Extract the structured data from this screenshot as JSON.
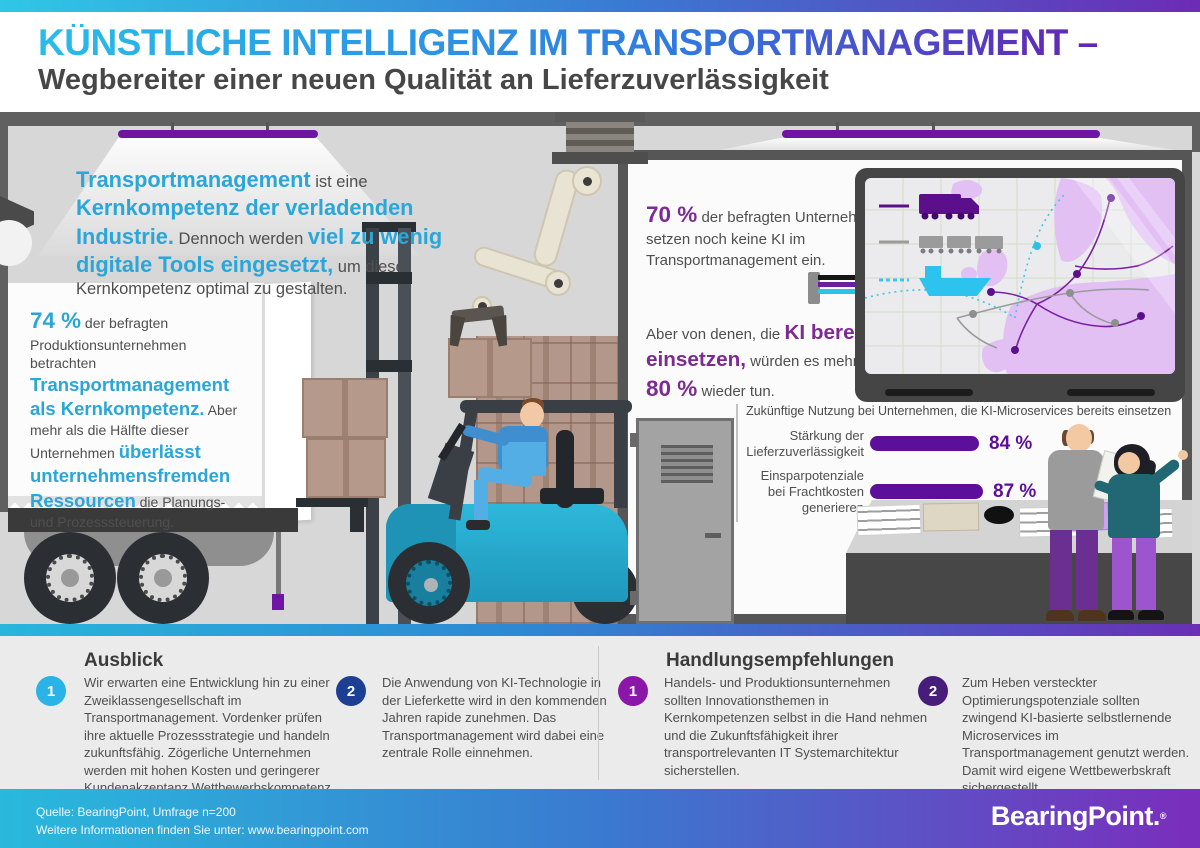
{
  "colors": {
    "accent_cyan": "#2aa6d8",
    "accent_purple": "#7d2a93",
    "bar_purple": "#5c0f9b",
    "circle_outlook_1": "#29b3e6",
    "circle_outlook_2": "#1c3f94",
    "circle_reco_1": "#8b17a8",
    "circle_reco_2": "#471d7a"
  },
  "header": {
    "title": "KÜNSTLICHE INTELLIGENZ IM TRANSPORTMANAGEMENT –",
    "subtitle": "Wegbereiter einer neuen Qualität an Lieferzuverlässigkeit"
  },
  "scene": {
    "intro": [
      {
        "t": "Transportmanagement",
        "s": "c"
      },
      {
        "t": " ist eine ",
        "s": ""
      },
      {
        "t": "Kernkompetenz der verladenden Industrie.",
        "s": "c"
      },
      {
        "t": " Dennoch werden ",
        "s": ""
      },
      {
        "t": "viel zu wenig digitale Tools eingesetzt,",
        "s": "c"
      },
      {
        "t": " um diese Kernkompetenz optimal zu gestalten.",
        "s": ""
      }
    ],
    "stat74": [
      {
        "t": "74 %",
        "s": "cb"
      },
      {
        "t": " der befragten Produktionsunternehmen betrachten ",
        "s": ""
      },
      {
        "t": "Transportmanagement als Kernkompetenz.",
        "s": "c"
      },
      {
        "t": " Aber mehr als die Hälfte dieser Unternehmen ",
        "s": ""
      },
      {
        "t": "überlässt unternehmensfremden Ressourcen",
        "s": "c"
      },
      {
        "t": " die Planungs- und Prozesssteuerung.",
        "s": ""
      }
    ],
    "stat70": [
      {
        "t": "70 %",
        "s": "pb"
      },
      {
        "t": " der befragten Unternehmen setzen noch keine KI im Transportmanagement ein.",
        "s": ""
      }
    ],
    "stat80": [
      {
        "t": "Aber von denen, die ",
        "s": ""
      },
      {
        "t": "KI bereits einsetzen,",
        "s": "p"
      },
      {
        "t": " würden es mehr als ",
        "s": ""
      },
      {
        "t": "80 %",
        "s": "pb"
      },
      {
        "t": " wieder tun.",
        "s": ""
      }
    ],
    "map": {
      "legend": [
        {
          "name": "truck-route",
          "color": "#5c0f8b",
          "style": "solid"
        },
        {
          "name": "rail-route",
          "color": "#9b9b9b",
          "style": "solid"
        },
        {
          "name": "ship-route",
          "color": "#2cc4ee",
          "style": "dotted"
        }
      ]
    }
  },
  "chart_data": {
    "type": "bar",
    "orientation": "horizontal",
    "title": "Zukünftige Nutzung bei Unternehmen, die KI-Microservices bereits einsetzen",
    "categories": [
      "Stärkung der Lieferzuverlässigkeit",
      "Einsparpotenziale bei Frachtkosten generieren"
    ],
    "values": [
      84,
      87
    ],
    "value_labels": [
      "84 %",
      "87 %"
    ],
    "unit": "%",
    "xlim": [
      0,
      100
    ],
    "bar_color": "#5c0f9b",
    "legend_position": "none",
    "grid": false
  },
  "outlook": {
    "heading": "Ausblick",
    "items": [
      {
        "num": "1",
        "text": "Wir erwarten eine Entwicklung hin zu einer Zweiklassengesellschaft im Transportmanagement. Vordenker prüfen ihre aktuelle Prozessstrategie und handeln zukunftsfähig. Zögerliche Unternehmen werden mit hohen Kosten und geringerer Kundenakzeptanz Wettbewerbskompetenz verlieren."
      },
      {
        "num": "2",
        "text": "Die Anwendung von KI-Technologie in der Lieferkette wird in den kommenden Jahren rapide zunehmen. Das Transportmanagement wird dabei eine zentrale Rolle einnehmen."
      }
    ]
  },
  "recommendations": {
    "heading": "Handlungsempfehlungen",
    "items": [
      {
        "num": "1",
        "text": "Handels- und Produktionsunternehmen sollten Innovationsthemen in Kernkompetenzen selbst in die Hand nehmen und die Zukunftsfähigkeit ihrer transportrelevanten IT Systemarchitektur sicherstellen."
      },
      {
        "num": "2",
        "text": "Zum Heben versteckter Optimierungspotenziale sollten zwingend KI-basierte selbstlernende Microservices im Transportmanagement genutzt werden. Damit wird eigene Wettbewerbskraft sichergestellt."
      }
    ]
  },
  "footer": {
    "line1": "Quelle: BearingPoint, Umfrage n=200",
    "line2": "Weitere Informationen finden Sie unter: www.bearingpoint.com",
    "logo": "BearingPoint.",
    "registered": "®"
  }
}
